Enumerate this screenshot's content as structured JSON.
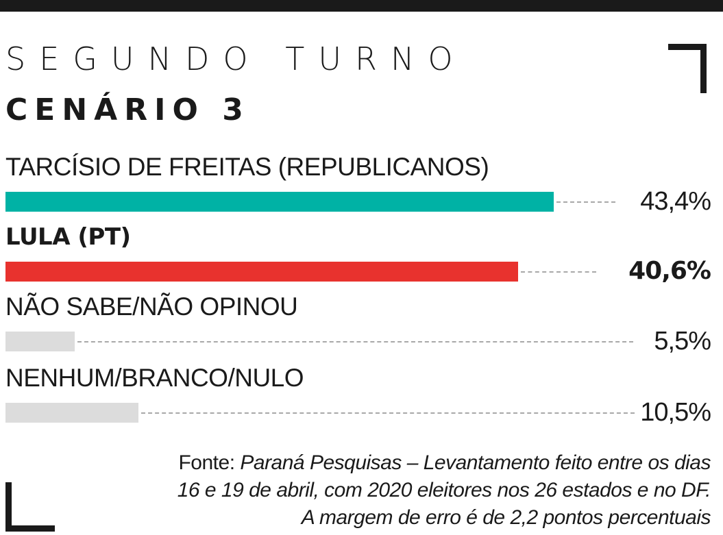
{
  "header": {
    "kicker": "SEGUNDO TURNO",
    "title": "CENÁRIO 3"
  },
  "colors": {
    "tarcisio": "#00b2a5",
    "lula": "#e8322e",
    "neutral": "#dcdcdc",
    "ink": "#1a1a1a"
  },
  "chart_data": {
    "type": "bar",
    "orientation": "horizontal",
    "title": "CENÁRIO 3",
    "subtitle": "SEGUNDO TURNO",
    "categories": [
      "TARCÍSIO DE FREITAS (REPUBLICANOS)",
      "LULA (PT)",
      "NÃO SABE/NÃO OPINOU",
      "NENHUM/BRANCO/NULO"
    ],
    "values": [
      43.4,
      40.6,
      5.5,
      10.5
    ],
    "value_labels": [
      "43,4%",
      "40,6%",
      "5,5%",
      "10,5%"
    ],
    "unit": "%",
    "xlim": [
      0,
      43.4
    ],
    "highlight_index": 1,
    "grid": false,
    "legend": "none"
  },
  "source": {
    "prefix": "Fonte: ",
    "line1": "Paraná Pesquisas – Levantamento feito entre os dias",
    "line2": "16 e 19 de abril, com 2020 eleitores nos 26 estados e no DF.",
    "line3": "A margem de erro é de 2,2 pontos percentuais"
  }
}
